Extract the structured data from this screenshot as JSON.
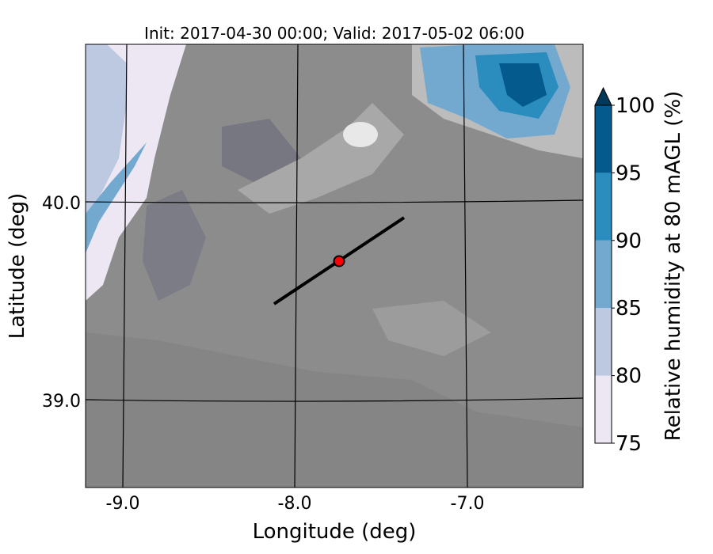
{
  "title": "Init: 2017-04-30 00:00; Valid: 2017-05-02 06:00",
  "chart_data": {
    "type": "map-contourf",
    "title": "Init: 2017-04-30 00:00; Valid: 2017-05-02 06:00",
    "xlabel": "Longitude (deg)",
    "ylabel": "Latitude (deg)",
    "xticks": [
      "-9.0",
      "-8.0",
      "-7.0"
    ],
    "yticks": [
      "40.0",
      "39.0"
    ],
    "xlim": [
      -9.2,
      -6.35
    ],
    "ylim": [
      38.55,
      40.8
    ],
    "colorbar": {
      "label": "Relative humidity at 80 mAGL (%)",
      "ticks": [
        "75",
        "80",
        "85",
        "90",
        "95",
        "100"
      ],
      "levels": [
        75,
        80,
        85,
        90,
        95,
        100
      ],
      "colors": [
        "#ece7f2",
        "#bdc9e1",
        "#74a9cf",
        "#2b8cbe",
        "#045a8d"
      ],
      "extend_color": "#023858",
      "extend": "max"
    },
    "transect": {
      "start": [
        -8.12,
        39.48
      ],
      "end": [
        -7.37,
        39.92
      ]
    },
    "point": {
      "lon": -7.75,
      "lat": 39.7,
      "color": "#ff0000"
    }
  }
}
